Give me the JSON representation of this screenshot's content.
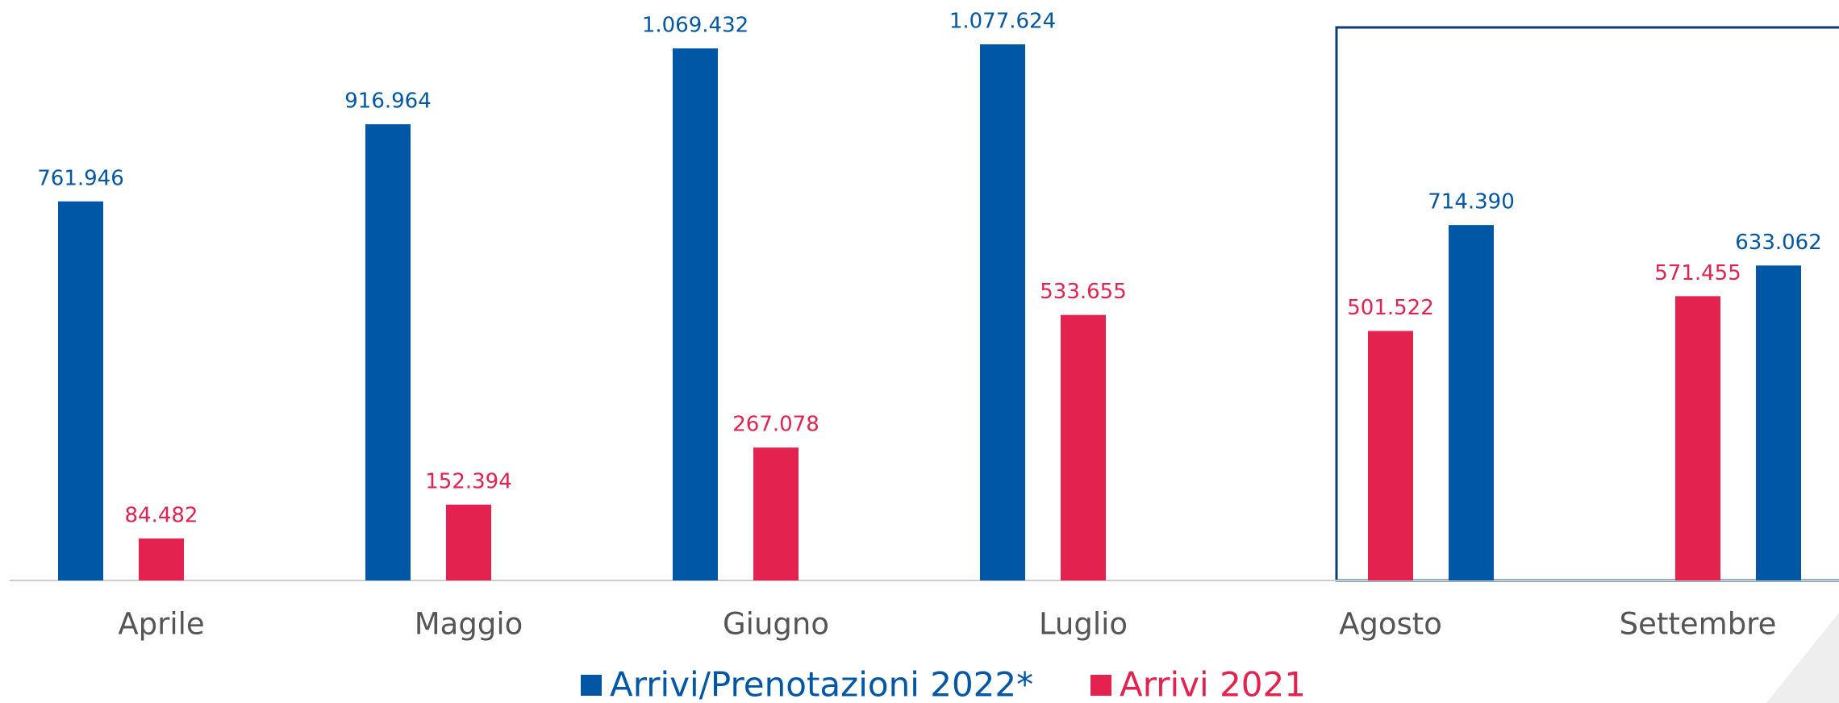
{
  "chart_data": {
    "type": "bar",
    "categories": [
      "Aprile",
      "Maggio",
      "Giugno",
      "Luglio",
      "Agosto",
      "Settembre"
    ],
    "series": [
      {
        "name": "Arrivi/Prenotazioni 2022*",
        "color": "#0057a5",
        "values": [
          761946,
          916964,
          1069432,
          1077624,
          714390,
          633062
        ],
        "value_labels": [
          "761.946",
          "916.964",
          "1.069.432",
          "1.077.624",
          "714.390",
          "633.062"
        ]
      },
      {
        "name": "Arrivi 2021",
        "color": "#e3224f",
        "values": [
          84482,
          152394,
          267078,
          533655,
          501522,
          571455
        ],
        "value_labels": [
          "84.482",
          "152.394",
          "267.078",
          "533.655",
          "501.522",
          "571.455"
        ]
      }
    ]
  }
}
